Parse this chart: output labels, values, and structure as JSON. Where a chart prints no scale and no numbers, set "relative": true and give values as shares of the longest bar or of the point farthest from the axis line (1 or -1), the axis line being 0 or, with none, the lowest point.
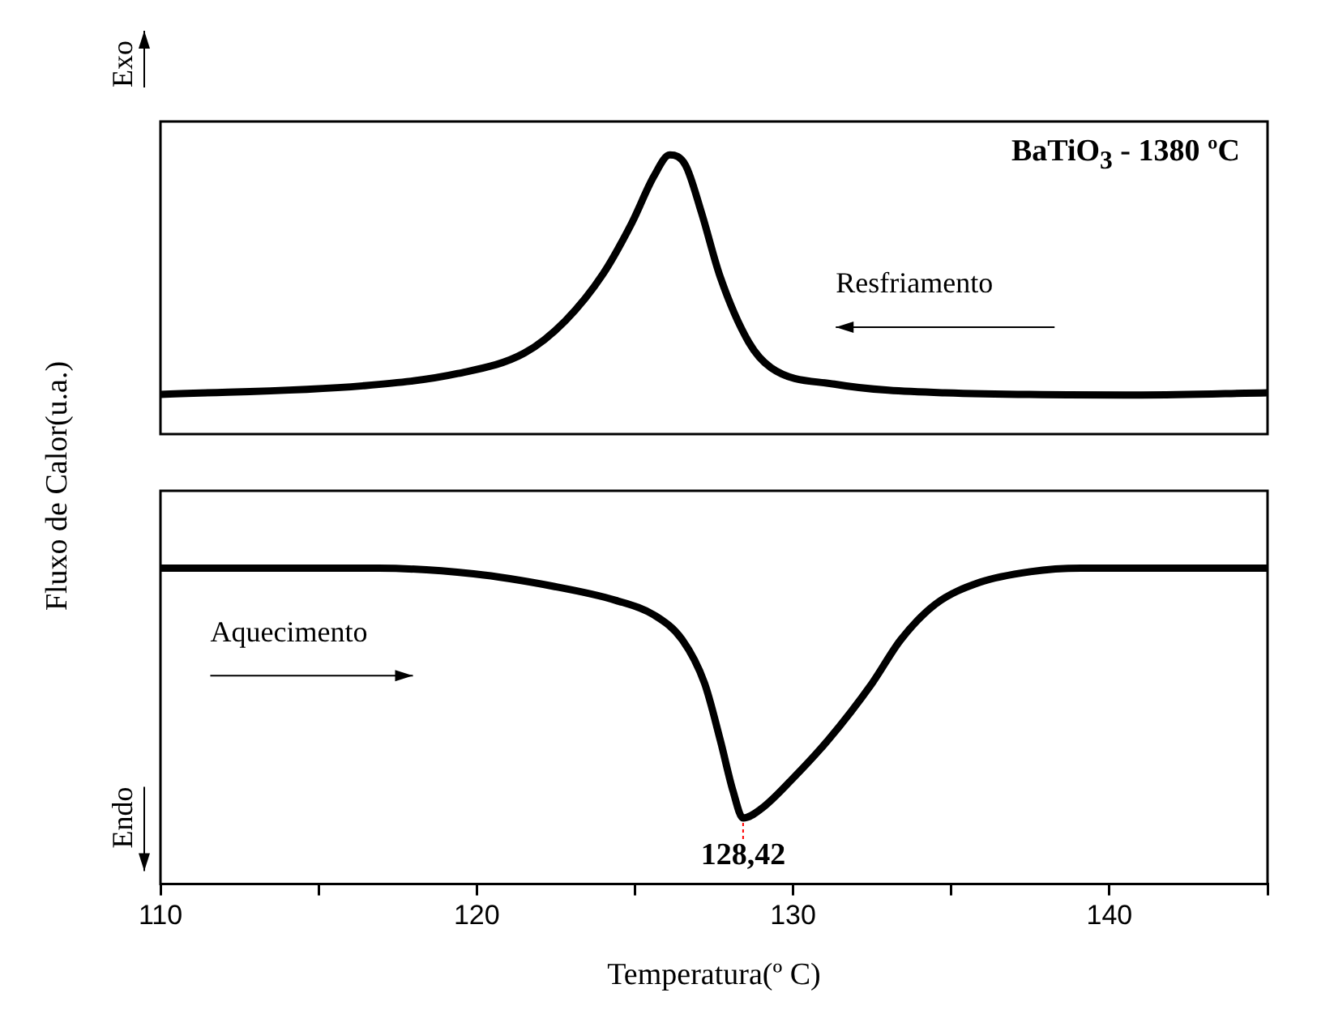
{
  "chart_data": [
    {
      "type": "line",
      "title": "BaTiO$_{3}$ - 1380 ºC",
      "ylabel": "Fluxo de Calor(u.a.)",
      "relative": true,
      "marker": "none",
      "tick_labels": false,
      "xlim": [
        110,
        145
      ],
      "annotations": [
        "Exo",
        "Resfriamento"
      ],
      "series": [
        {
          "color": "#000000",
          "x": [
            110.0,
            116.4,
            119.4,
            121.5,
            122.8,
            124.0,
            124.9,
            125.6,
            126.1,
            126.6,
            127.1,
            127.7,
            128.6,
            129.3,
            131.3,
            134.8,
            141.0,
            145.0
          ],
          "values": [
            0.142,
            0.173,
            0.217,
            0.29,
            0.406,
            0.575,
            0.756,
            0.924,
            1.0,
            0.963,
            0.795,
            0.562,
            0.329,
            0.238,
            0.179,
            0.148,
            0.14,
            0.148
          ]
        }
      ]
    },
    {
      "type": "line",
      "xlabel": "Temperatura(º C)",
      "relative": true,
      "marker": "none",
      "tick_labels": "x",
      "xlim": [
        110,
        145
      ],
      "xticks": [
        110,
        {
          "value": 115,
          "label": null
        },
        120,
        {
          "value": 125,
          "label": null
        },
        130,
        {
          "value": 135,
          "label": null
        },
        140,
        {
          "value": 145,
          "label": null
        }
      ],
      "annotations": [
        "Endo",
        "Aquecimento",
        {
          "text": "128,42",
          "x": 128.42,
          "y": 0.209
        }
      ],
      "series": [
        {
          "color": "#000000",
          "x": [
            110.0,
            116.9,
            119.9,
            122.4,
            124.4,
            125.6,
            126.5,
            127.2,
            127.7,
            128.1,
            128.42,
            129.0,
            129.95,
            131.1,
            132.5,
            133.4,
            134.5,
            135.9,
            137.5,
            139.1,
            145.0
          ],
          "values": [
            1.0,
            1.0,
            0.982,
            0.943,
            0.898,
            0.852,
            0.773,
            0.636,
            0.455,
            0.295,
            0.209,
            0.239,
            0.33,
            0.455,
            0.636,
            0.773,
            0.886,
            0.955,
            0.989,
            1.0,
            1.0
          ]
        }
      ]
    }
  ]
}
